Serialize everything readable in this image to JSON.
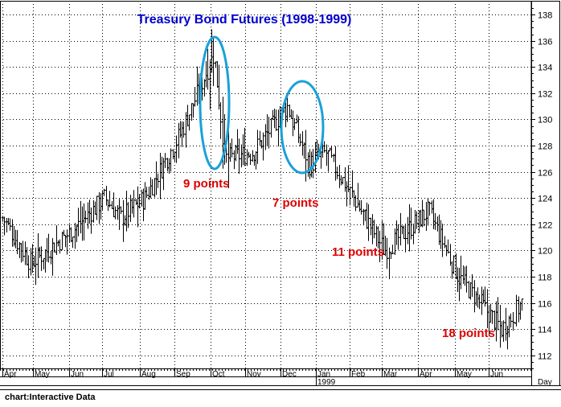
{
  "chart_data": {
    "type": "bar",
    "subtype": "ohlc",
    "title": "Treasury Bond Futures (1998-1999)",
    "xlabel": "",
    "ylabel": "",
    "x_axis_unit_label": "Day",
    "year_marker": "1999",
    "ylim": [
      111,
      138.5
    ],
    "y_ticks": [
      112,
      114,
      116,
      118,
      120,
      122,
      124,
      126,
      128,
      130,
      132,
      134,
      136,
      138
    ],
    "x_ticks": [
      "Apr",
      "May",
      "Jun",
      "Jul",
      "Aug",
      "Sep",
      "Oct",
      "Nov",
      "Dec",
      "Jan",
      "Feb",
      "Mar",
      "Apr",
      "May",
      "Jun"
    ],
    "grid": true,
    "series_key_points": [
      {
        "date": "Apr 1998",
        "price": 122.5
      },
      {
        "date": "Early May 1998",
        "price": 119
      },
      {
        "date": "Jun 1998",
        "price": 121.5
      },
      {
        "date": "Early Jul 1998",
        "price": 124
      },
      {
        "date": "Late Jul 1998",
        "price": 122.5
      },
      {
        "date": "Aug 1998",
        "price": 124
      },
      {
        "date": "Sep 1998",
        "price": 129
      },
      {
        "date": "Early Oct 1998",
        "price": 135
      },
      {
        "date": "Mid Oct 1998",
        "price": 127
      },
      {
        "date": "Nov 1998",
        "price": 127.5
      },
      {
        "date": "Dec 1998",
        "price": 131
      },
      {
        "date": "Late Dec 1998",
        "price": 126.5
      },
      {
        "date": "Jan 1999",
        "price": 127.5
      },
      {
        "date": "Feb 1999",
        "price": 124
      },
      {
        "date": "Mar 1999",
        "price": 120
      },
      {
        "date": "Apr 1999",
        "price": 123
      },
      {
        "date": "May 1999",
        "price": 118
      },
      {
        "date": "Late Jun 1999",
        "price": 114
      },
      {
        "date": "End Jun 1999",
        "price": 116
      }
    ],
    "annotations": [
      {
        "text": "9 points",
        "color": "#dd0000"
      },
      {
        "text": "7 points",
        "color": "#dd0000"
      },
      {
        "text": "11 points",
        "color": "#dd0000"
      },
      {
        "text": "18 points",
        "color": "#dd0000"
      }
    ],
    "highlight_color": "#1aa0d8",
    "title_color": "#0000cc",
    "bar_color": "#000000"
  },
  "credit": "chart:Interactive Data"
}
